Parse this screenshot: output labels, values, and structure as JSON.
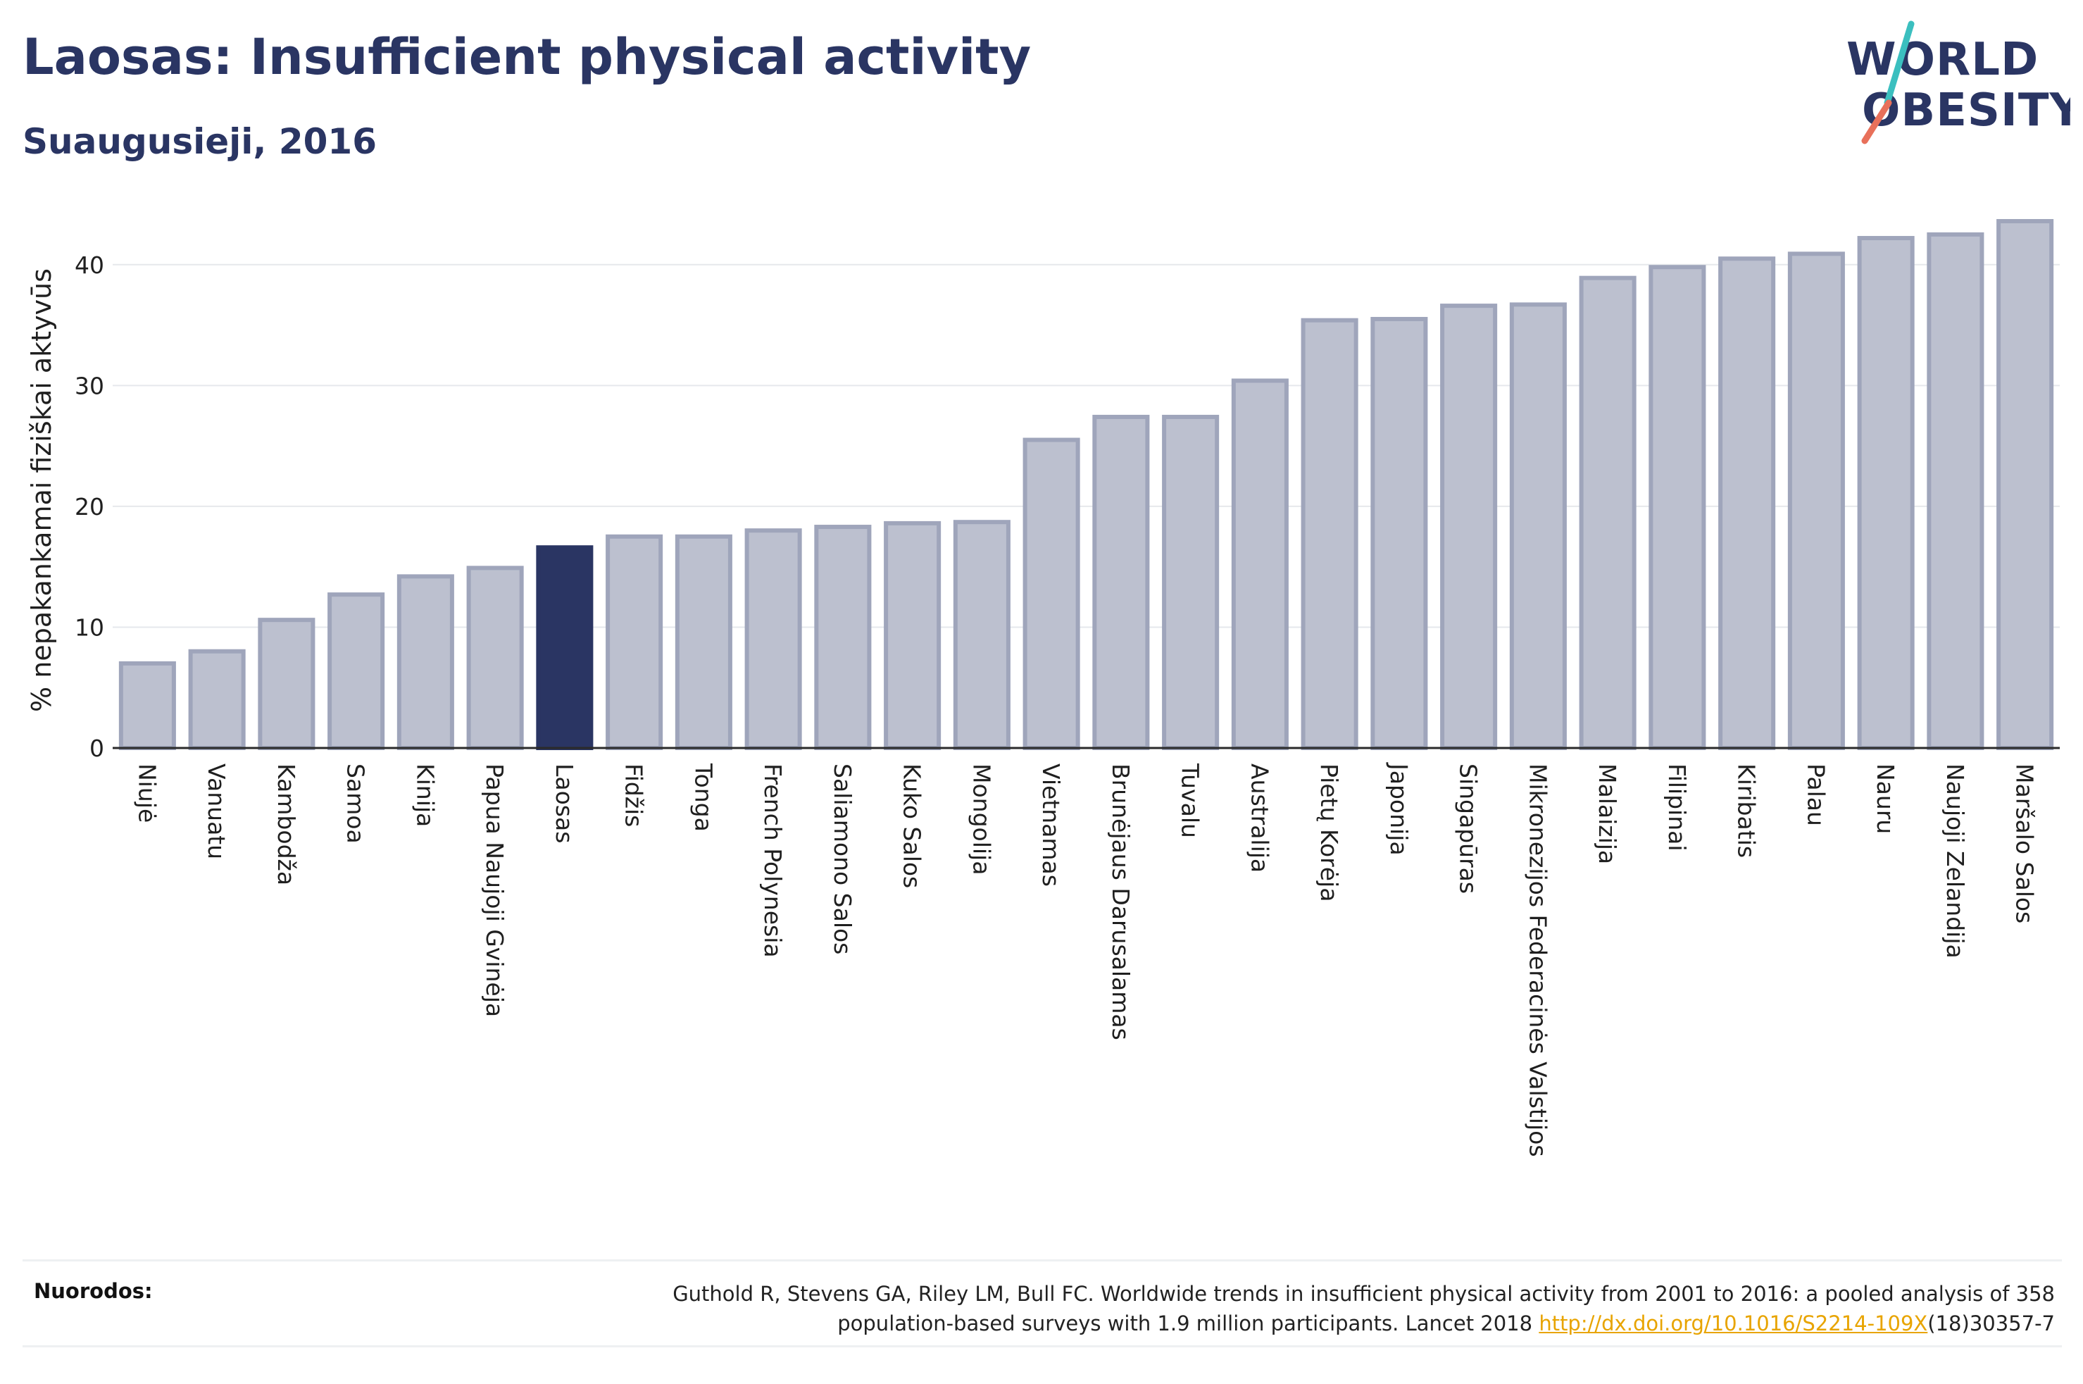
{
  "header": {
    "title": "Laosas: Insufficient physical activity",
    "subtitle": "Suaugusieji, 2016"
  },
  "logo": {
    "line1": "WORLD",
    "line2": "OBESITY",
    "slash_colors": [
      "#3bbfbf",
      "#e8705a"
    ]
  },
  "chart_data": {
    "type": "bar",
    "ylabel": "% nepakankamai fiziškai aktyvūs",
    "ylim": [
      0,
      45
    ],
    "yticks": [
      0,
      10,
      20,
      30,
      40
    ],
    "grid": true,
    "highlight_category": "Laosas",
    "colors": {
      "bar": "#bcc0cf",
      "bar_border": "#9fa5bb",
      "highlight": "#2a3563"
    },
    "categories": [
      "Niujė",
      "Vanuatu",
      "Kambodža",
      "Samoa",
      "Kinija",
      "Papua Naujoji Gvinėja",
      "Laosas",
      "Fidžis",
      "Tonga",
      "French Polynesia",
      "Saliamono Salos",
      "Kuko Salos",
      "Mongolija",
      "Vietnamas",
      "Brunėjaus Darusalamas",
      "Tuvalu",
      "Australija",
      "Pietų Korėja",
      "Japonija",
      "Singapūras",
      "Mikronezijos Federacinės Valstijos",
      "Malaizija",
      "Filipinai",
      "Kiribatis",
      "Palau",
      "Nauru",
      "Naujoji Zelandija",
      "Maršalo Salos"
    ],
    "values": [
      7.0,
      8.0,
      10.6,
      12.7,
      14.2,
      14.9,
      16.6,
      17.5,
      17.5,
      18.0,
      18.3,
      18.6,
      18.7,
      25.5,
      27.4,
      27.4,
      30.4,
      35.4,
      35.5,
      36.6,
      36.7,
      38.9,
      39.8,
      40.5,
      40.9,
      42.2,
      42.5,
      43.6
    ]
  },
  "footer": {
    "label": "Nuorodos:",
    "text_line1": "Guthold R, Stevens GA, Riley LM, Bull FC. Worldwide trends in insufficient physical activity from 2001 to 2016: a pooled analysis of 358",
    "text_line2_prefix": "population-based surveys with 1.9 million participants. Lancet 2018 ",
    "link": "http://dx.doi.org/10.1016/S2214-109X",
    "text_line2_suffix": "(18)30357-7"
  }
}
